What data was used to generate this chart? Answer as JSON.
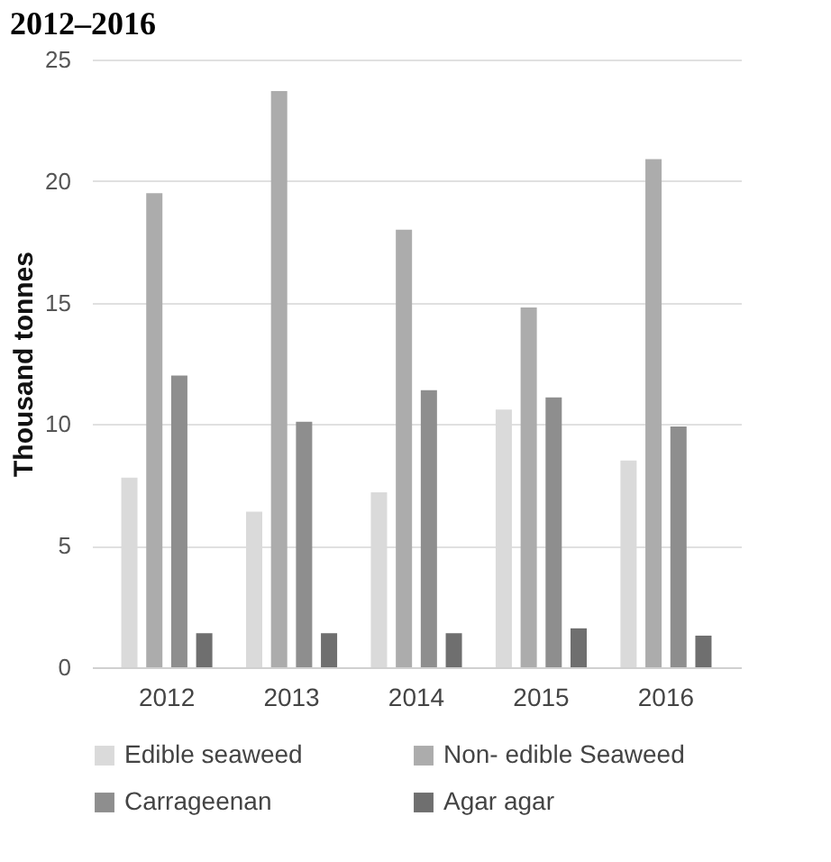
{
  "chart_data": {
    "type": "bar",
    "title": "2012–2016",
    "ylabel": "Thousand tonnes",
    "categories": [
      "2012",
      "2013",
      "2014",
      "2015",
      "2016"
    ],
    "series": [
      {
        "name": "Edible seaweed",
        "color": "#dadada",
        "values": [
          7.8,
          6.4,
          7.2,
          10.6,
          8.5
        ]
      },
      {
        "name": "Non- edible Seaweed",
        "color": "#acacac",
        "values": [
          19.5,
          23.7,
          18.0,
          14.8,
          20.9
        ]
      },
      {
        "name": "Carrageenan",
        "color": "#8e8e8e",
        "values": [
          12.0,
          10.1,
          11.4,
          11.1,
          9.9
        ]
      },
      {
        "name": "Agar agar",
        "color": "#6f6f6f",
        "values": [
          1.4,
          1.4,
          1.4,
          1.6,
          1.3
        ]
      }
    ],
    "ylim": [
      0,
      25
    ],
    "yticks": [
      0,
      5,
      10,
      15,
      20,
      25
    ],
    "grid": "y",
    "legend": "bottom"
  }
}
